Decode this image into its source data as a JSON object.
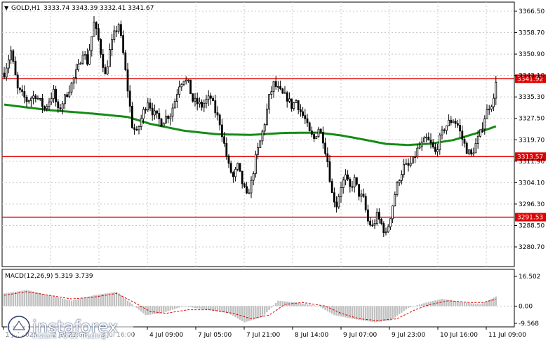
{
  "colors": {
    "background": "#ffffff",
    "grid": "#c8c8c8",
    "candle": "#000000",
    "moving_average": "#158c15",
    "level_line": "#e00000",
    "level_label_bg": "#e00000",
    "macd_histogram": "#c0c0c0",
    "macd_signal": "#e00000"
  },
  "header": {
    "symbol_timeframe": "GOLD,H1",
    "ohlc": "3333.74 3343.39 3332.41 3341.67"
  },
  "macd_header": {
    "label": "MACD(12,26,9) 5.319 3.739"
  },
  "watermark": {
    "name": "instaforex",
    "tagline": "Instant Forex Trading"
  },
  "chart_data": [
    {
      "type": "candlestick",
      "title": "GOLD,H1",
      "y_axis_ticks": [
        "3366.50",
        "3358.70",
        "3350.90",
        "3343.10",
        "3335.30",
        "3327.50",
        "3319.70",
        "3311.90",
        "3304.10",
        "3296.30",
        "3288.50",
        "3280.70"
      ],
      "ylim": [
        3280.7,
        3366.5
      ],
      "x_axis_ticks": [
        "1 Jul 2025",
        "2 Jul 23:00",
        "3 Jul 16:00",
        "4 Jul 09:00",
        "7 Jul 05:00",
        "7 Jul 21:00",
        "8 Jul 14:00",
        "9 Jul 07:00",
        "9 Jul 23:00",
        "10 Jul 16:00",
        "11 Jul 09:00"
      ],
      "grid": true,
      "horizontal_levels": [
        {
          "value": 3341.92,
          "label": "3341.92"
        },
        {
          "value": 3313.57,
          "label": "3313.57"
        },
        {
          "value": 3291.53,
          "label": "3291.53"
        }
      ],
      "price_path": [
        [
          0,
          3344
        ],
        [
          3,
          3352
        ],
        [
          6,
          3338
        ],
        [
          10,
          3334
        ],
        [
          14,
          3336
        ],
        [
          18,
          3331
        ],
        [
          22,
          3337
        ],
        [
          24,
          3330
        ],
        [
          27,
          3335
        ],
        [
          30,
          3340
        ],
        [
          33,
          3346
        ],
        [
          35,
          3352
        ],
        [
          37,
          3348
        ],
        [
          40,
          3362
        ],
        [
          42,
          3356
        ],
        [
          45,
          3343
        ],
        [
          47,
          3352
        ],
        [
          49,
          3358
        ],
        [
          51,
          3362
        ],
        [
          53,
          3351
        ],
        [
          55,
          3338
        ],
        [
          57,
          3325
        ],
        [
          59,
          3322
        ],
        [
          62,
          3330
        ],
        [
          64,
          3334
        ],
        [
          66,
          3330
        ],
        [
          68,
          3328
        ],
        [
          70,
          3326
        ],
        [
          72,
          3328
        ],
        [
          74,
          3329
        ],
        [
          76,
          3334
        ],
        [
          78,
          3340
        ],
        [
          80,
          3342
        ],
        [
          82,
          3340
        ],
        [
          84,
          3334
        ],
        [
          86,
          3333
        ],
        [
          88,
          3332
        ],
        [
          90,
          3334
        ],
        [
          92,
          3335
        ],
        [
          94,
          3330
        ],
        [
          96,
          3326
        ],
        [
          98,
          3318
        ],
        [
          100,
          3310
        ],
        [
          102,
          3306
        ],
        [
          104,
          3310
        ],
        [
          106,
          3304
        ],
        [
          108,
          3299
        ],
        [
          110,
          3304
        ],
        [
          112,
          3313
        ],
        [
          114,
          3319
        ],
        [
          116,
          3326
        ],
        [
          118,
          3335
        ],
        [
          120,
          3340
        ],
        [
          122,
          3338
        ],
        [
          124,
          3336
        ],
        [
          126,
          3335
        ],
        [
          128,
          3332
        ],
        [
          130,
          3334
        ],
        [
          132,
          3330
        ],
        [
          134,
          3327
        ],
        [
          136,
          3322
        ],
        [
          138,
          3320
        ],
        [
          140,
          3324
        ],
        [
          142,
          3320
        ],
        [
          144,
          3312
        ],
        [
          146,
          3300
        ],
        [
          148,
          3296
        ],
        [
          150,
          3303
        ],
        [
          152,
          3306
        ],
        [
          154,
          3302
        ],
        [
          156,
          3305
        ],
        [
          158,
          3300
        ],
        [
          160,
          3298
        ],
        [
          162,
          3290
        ],
        [
          164,
          3288
        ],
        [
          166,
          3292
        ],
        [
          168,
          3289
        ],
        [
          170,
          3285
        ],
        [
          172,
          3292
        ],
        [
          174,
          3300
        ],
        [
          176,
          3306
        ],
        [
          178,
          3310
        ],
        [
          180,
          3310
        ],
        [
          182,
          3312
        ],
        [
          184,
          3316
        ],
        [
          186,
          3318
        ],
        [
          188,
          3320
        ],
        [
          190,
          3318
        ],
        [
          192,
          3315
        ],
        [
          194,
          3320
        ],
        [
          196,
          3324
        ],
        [
          198,
          3326
        ],
        [
          200,
          3327
        ],
        [
          202,
          3325
        ],
        [
          204,
          3320
        ],
        [
          206,
          3316
        ],
        [
          208,
          3314
        ],
        [
          210,
          3318
        ],
        [
          212,
          3322
        ],
        [
          214,
          3328
        ],
        [
          216,
          3332
        ],
        [
          218,
          3334
        ],
        [
          219,
          3341.67
        ]
      ],
      "moving_average": [
        [
          0,
          3332.5
        ],
        [
          20,
          3330.5
        ],
        [
          40,
          3329.2
        ],
        [
          55,
          3328.0
        ],
        [
          65,
          3325.5
        ],
        [
          80,
          3323.0
        ],
        [
          95,
          3321.7
        ],
        [
          110,
          3321.5
        ],
        [
          125,
          3322.2
        ],
        [
          140,
          3322.3
        ],
        [
          150,
          3321.3
        ],
        [
          160,
          3319.8
        ],
        [
          170,
          3318.2
        ],
        [
          180,
          3317.8
        ],
        [
          190,
          3318.3
        ],
        [
          200,
          3319.6
        ],
        [
          210,
          3322.0
        ],
        [
          219,
          3324.6
        ]
      ]
    },
    {
      "type": "bar",
      "title": "MACD(12,26,9) 5.319 3.739",
      "y_axis_ticks": [
        "16.502",
        "0.00",
        "-9.568"
      ],
      "ylim": [
        -9.568,
        16.502
      ],
      "macd": [
        [
          0,
          7
        ],
        [
          10,
          9
        ],
        [
          20,
          6
        ],
        [
          30,
          3
        ],
        [
          40,
          6
        ],
        [
          50,
          8
        ],
        [
          58,
          0
        ],
        [
          63,
          -5
        ],
        [
          70,
          -4
        ],
        [
          80,
          0
        ],
        [
          90,
          -2
        ],
        [
          100,
          -4
        ],
        [
          107,
          -9
        ],
        [
          115,
          -6
        ],
        [
          122,
          3
        ],
        [
          130,
          2
        ],
        [
          140,
          0
        ],
        [
          147,
          -5
        ],
        [
          155,
          -7
        ],
        [
          165,
          -9
        ],
        [
          172,
          -8
        ],
        [
          180,
          -1
        ],
        [
          188,
          2
        ],
        [
          195,
          4
        ],
        [
          205,
          2
        ],
        [
          212,
          1
        ],
        [
          219,
          5.319
        ]
      ],
      "signal": [
        [
          0,
          6
        ],
        [
          10,
          8
        ],
        [
          20,
          6
        ],
        [
          30,
          4
        ],
        [
          40,
          5
        ],
        [
          50,
          7
        ],
        [
          58,
          2
        ],
        [
          65,
          -3
        ],
        [
          72,
          -4
        ],
        [
          82,
          -2
        ],
        [
          92,
          -2
        ],
        [
          102,
          -4
        ],
        [
          110,
          -7
        ],
        [
          118,
          -5
        ],
        [
          125,
          1
        ],
        [
          133,
          2
        ],
        [
          143,
          0
        ],
        [
          150,
          -4
        ],
        [
          158,
          -7
        ],
        [
          166,
          -8
        ],
        [
          175,
          -7
        ],
        [
          183,
          -2
        ],
        [
          190,
          1
        ],
        [
          198,
          3
        ],
        [
          207,
          2
        ],
        [
          213,
          2
        ],
        [
          219,
          3.739
        ]
      ]
    }
  ]
}
